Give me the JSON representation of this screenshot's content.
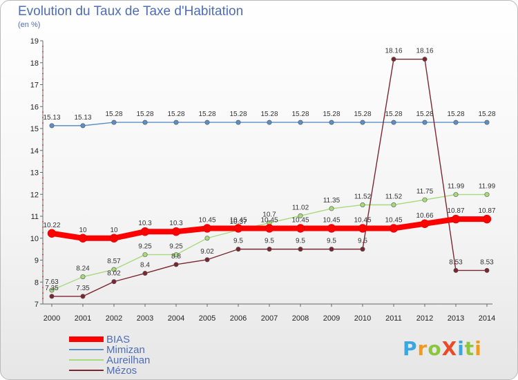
{
  "title": "Evolution du Taux de Taxe d'Habitation",
  "unit_label": "(en %)",
  "brand": {
    "text": "ProXiti",
    "letters": [
      "P",
      "r",
      "o",
      "X",
      "i",
      "t",
      "i"
    ],
    "letter_colors": [
      "#3aa7e0",
      "#f39a1b",
      "#8cc63f",
      "#e94b2a",
      "#3aa7e0",
      "#8cc63f",
      "#f39a1b"
    ]
  },
  "chart_data": {
    "type": "line",
    "x": [
      "2000",
      "2001",
      "2002",
      "2003",
      "2004",
      "2005",
      "2006",
      "2007",
      "2008",
      "2009",
      "2010",
      "2011",
      "2012",
      "2013",
      "2014"
    ],
    "ylim": [
      7,
      19
    ],
    "yticks": [
      "7",
      "8",
      "9",
      "10",
      "11",
      "12",
      "13",
      "14",
      "15",
      "16",
      "17",
      "18",
      "19"
    ],
    "grid": false,
    "legend_position": "bottom-left",
    "series": [
      {
        "name": "Mimizan",
        "color": "#5b8fc7",
        "values": [
          15.13,
          15.13,
          15.28,
          15.28,
          15.28,
          15.28,
          15.28,
          15.28,
          15.28,
          15.28,
          15.28,
          15.28,
          15.28,
          15.28,
          15.28
        ],
        "labels": [
          "15.13",
          "15.13",
          "15.28",
          "15.28",
          "15.28",
          "15.28",
          "15.28",
          "15.28",
          "15.28",
          "15.28",
          "15.28",
          "15.28",
          "15.28",
          "15.28",
          "15.28"
        ]
      },
      {
        "name": "Aureilhan",
        "color": "#a6da7c",
        "values": [
          7.63,
          8.24,
          8.57,
          9.25,
          9.25,
          10,
          10.37,
          10.7,
          11.02,
          11.35,
          11.52,
          11.52,
          11.75,
          11.99,
          11.99
        ],
        "labels": [
          "7.63",
          "8.24",
          "8.57",
          "9.25",
          "9.25",
          "",
          "10.37",
          "10.7",
          "11.02",
          "11.35",
          "11.52",
          "11.52",
          "11.75",
          "11.99",
          "11.99"
        ]
      },
      {
        "name": "Mézos",
        "color": "#7a2630",
        "values": [
          7.35,
          7.35,
          8.02,
          8.4,
          8.8,
          9.02,
          9.5,
          9.5,
          9.5,
          9.5,
          9.5,
          18.16,
          18.16,
          8.53,
          8.53
        ],
        "labels": [
          "7.35",
          "7.35",
          "8.02",
          "8.4",
          "8.8",
          "9.02",
          "9.5",
          "9.5",
          "9.5",
          "9.5",
          "9.5",
          "18.16",
          "18.16",
          "8.53",
          "8.53"
        ]
      },
      {
        "name": "BIAS",
        "color": "#ff0000",
        "values": [
          10.22,
          10,
          10,
          10.3,
          10.3,
          10.45,
          10.45,
          10.45,
          10.45,
          10.45,
          10.45,
          10.45,
          10.66,
          10.87,
          10.87
        ],
        "labels": [
          "10.22",
          "10",
          "10",
          "10.3",
          "10.3",
          "10.45",
          "10.45",
          "10.45",
          "10.45",
          "10.45",
          "10.45",
          "10.45",
          "10.66",
          "10.87",
          "10.87"
        ]
      }
    ],
    "legend_order": [
      "BIAS",
      "Mimizan",
      "Aureilhan",
      "Mézos"
    ]
  }
}
